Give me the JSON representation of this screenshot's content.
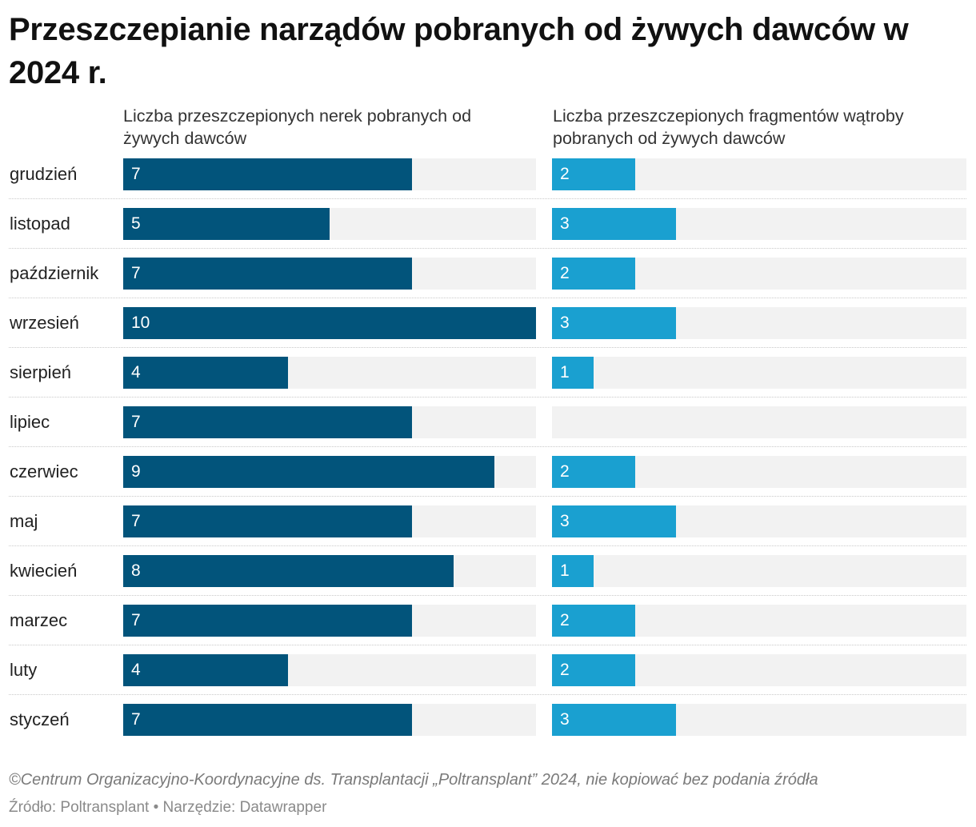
{
  "chart_data": {
    "type": "bar",
    "orientation": "horizontal",
    "title": "Przeszczepianie narządów pobranych od żywych dawców w 2024 r.",
    "categories": [
      "grudzień",
      "listopad",
      "październik",
      "wrzesień",
      "sierpień",
      "lipiec",
      "czerwiec",
      "maj",
      "kwiecień",
      "marzec",
      "luty",
      "styczeń"
    ],
    "series": [
      {
        "name": "Liczba przeszczepionych nerek pobranych od żywych dawców",
        "color": "#02547b",
        "values": [
          7,
          5,
          7,
          10,
          4,
          7,
          9,
          7,
          8,
          7,
          4,
          7
        ],
        "xlim": [
          0,
          10
        ]
      },
      {
        "name": "Liczba przeszczepionych fragmentów wątroby pobranych od żywych dawców",
        "color": "#1aa0d0",
        "values": [
          2,
          3,
          2,
          3,
          1,
          null,
          2,
          3,
          1,
          2,
          2,
          3
        ],
        "xlim": [
          0,
          10
        ]
      }
    ],
    "track_color": "#f2f2f2"
  },
  "footer": {
    "copyright": "©Centrum Organizacyjno-Koordynacyjne ds. Transplantacji „Poltransplant” 2024, nie kopiować bez podania źródła",
    "source": "Źródło: Poltransplant • Narzędzie: Datawrapper"
  }
}
